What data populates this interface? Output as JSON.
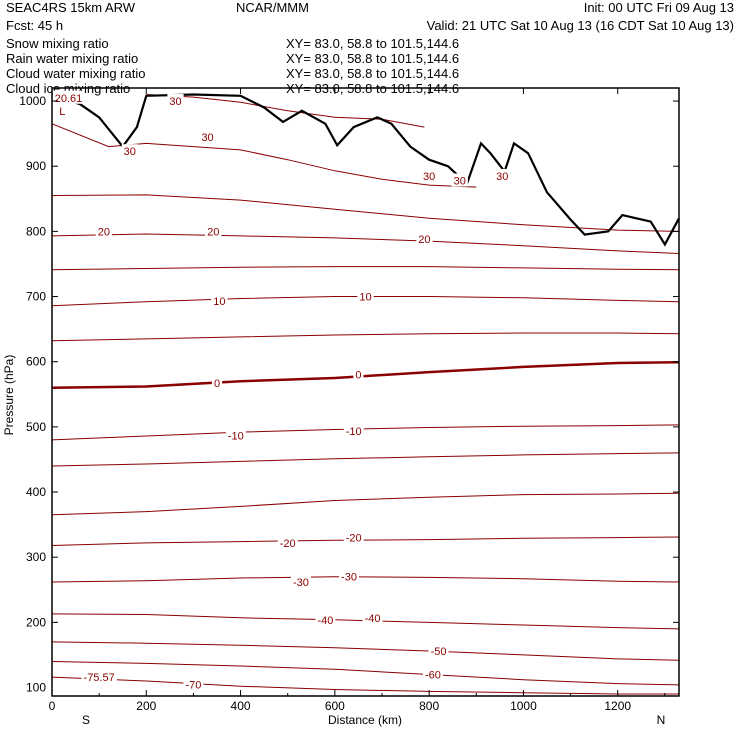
{
  "header": {
    "model": "SEAC4RS 15km ARW",
    "org": "NCAR/MMM",
    "init": "Init: 00 UTC Fri 09 Aug 13",
    "fcst": "Fcst:    45 h",
    "valid": "Valid: 21 UTC Sat 10 Aug 13 (16 CDT Sat 10 Aug 13)"
  },
  "fields": [
    {
      "label": "Snow mixing ratio",
      "xy": "XY=  83.0, 58.8 to 101.5,144.6",
      "color": "#000000"
    },
    {
      "label": "Rain water mixing ratio",
      "xy": "XY=  83.0, 58.8 to 101.5,144.6",
      "color": "#e00000"
    },
    {
      "label": "Cloud water mixing ratio",
      "xy": "XY=  83.0, 58.8 to 101.5,144.6",
      "color": "#0000d0"
    },
    {
      "label": "Cloud ice mixing ratio",
      "xy": "XY=  83.0, 58.8 to 101.5,144.6",
      "color": "#000000"
    }
  ],
  "chart_data": {
    "type": "line",
    "xlabel": "Distance (km)",
    "ylabel": "Pressure (hPa)",
    "xlim": [
      0,
      1330
    ],
    "ylim": [
      1020,
      87
    ],
    "x_ticks": [
      0,
      200,
      400,
      600,
      800,
      1000,
      1200
    ],
    "y_ticks": [
      200,
      300,
      400,
      500,
      600,
      700,
      800,
      900,
      1000
    ],
    "y_ticks_partial": [
      100
    ],
    "direction_labels": {
      "start": "S",
      "end": "N"
    },
    "contour_color": "#8b0000",
    "contours": [
      {
        "level": "-70",
        "points": [
          [
            0,
            116
          ],
          [
            200,
            110
          ],
          [
            400,
            102
          ],
          [
            600,
            97
          ],
          [
            800,
            94
          ],
          [
            1000,
            92
          ],
          [
            1200,
            90
          ],
          [
            1330,
            90
          ]
        ]
      },
      {
        "level": "-60",
        "points": [
          [
            0,
            140
          ],
          [
            200,
            137
          ],
          [
            400,
            133
          ],
          [
            600,
            128
          ],
          [
            800,
            120
          ],
          [
            1000,
            112
          ],
          [
            1200,
            106
          ],
          [
            1330,
            104
          ]
        ]
      },
      {
        "level": "-50",
        "points": [
          [
            0,
            170
          ],
          [
            200,
            168
          ],
          [
            400,
            165
          ],
          [
            600,
            161
          ],
          [
            800,
            156
          ],
          [
            1000,
            150
          ],
          [
            1200,
            144
          ],
          [
            1330,
            142
          ]
        ]
      },
      {
        "level": "-40",
        "points": [
          [
            0,
            213
          ],
          [
            200,
            212
          ],
          [
            400,
            207
          ],
          [
            600,
            204
          ],
          [
            800,
            200
          ],
          [
            1000,
            196
          ],
          [
            1200,
            192
          ],
          [
            1330,
            190
          ]
        ]
      },
      {
        "level": "-30",
        "points": [
          [
            0,
            262
          ],
          [
            200,
            264
          ],
          [
            400,
            268
          ],
          [
            600,
            270
          ],
          [
            800,
            269
          ],
          [
            1000,
            267
          ],
          [
            1200,
            263
          ],
          [
            1330,
            262
          ]
        ]
      },
      {
        "level": "-20",
        "points": [
          [
            0,
            318
          ],
          [
            200,
            322
          ],
          [
            400,
            324
          ],
          [
            600,
            326
          ],
          [
            800,
            327
          ],
          [
            1000,
            329
          ],
          [
            1200,
            330
          ],
          [
            1330,
            331
          ]
        ]
      },
      {
        "level": "-10",
        "points": [
          [
            0,
            365
          ],
          [
            200,
            370
          ],
          [
            400,
            378
          ],
          [
            600,
            387
          ],
          [
            800,
            392
          ],
          [
            1000,
            396
          ],
          [
            1200,
            397
          ],
          [
            1330,
            398
          ]
        ]
      },
      {
        "level": "-10",
        "points": [
          [
            0,
            440
          ],
          [
            200,
            443
          ],
          [
            400,
            447
          ],
          [
            600,
            451
          ],
          [
            800,
            454
          ],
          [
            1000,
            457
          ],
          [
            1200,
            459
          ],
          [
            1330,
            460
          ]
        ]
      },
      {
        "level": "-10",
        "points": [
          [
            0,
            480
          ],
          [
            200,
            486
          ],
          [
            400,
            492
          ],
          [
            600,
            496
          ],
          [
            800,
            499
          ],
          [
            1000,
            501
          ],
          [
            1200,
            502
          ],
          [
            1330,
            503
          ]
        ]
      },
      {
        "level": "0",
        "bold": true,
        "points": [
          [
            0,
            560
          ],
          [
            200,
            562
          ],
          [
            400,
            570
          ],
          [
            600,
            575
          ],
          [
            800,
            584
          ],
          [
            1000,
            592
          ],
          [
            1200,
            598
          ],
          [
            1330,
            599
          ]
        ]
      },
      {
        "level": "10",
        "points": [
          [
            0,
            632
          ],
          [
            200,
            635
          ],
          [
            400,
            638
          ],
          [
            600,
            641
          ],
          [
            800,
            643
          ],
          [
            1000,
            644
          ],
          [
            1200,
            644
          ],
          [
            1330,
            643
          ]
        ]
      },
      {
        "level": "10",
        "points": [
          [
            0,
            686
          ],
          [
            200,
            692
          ],
          [
            400,
            697
          ],
          [
            600,
            700
          ],
          [
            800,
            700
          ],
          [
            1000,
            698
          ],
          [
            1200,
            694
          ],
          [
            1330,
            692
          ]
        ]
      },
      {
        "level": "10",
        "points": [
          [
            0,
            741
          ],
          [
            200,
            743
          ],
          [
            400,
            745
          ],
          [
            600,
            746
          ],
          [
            800,
            746
          ],
          [
            1000,
            744
          ],
          [
            1200,
            742
          ],
          [
            1330,
            741
          ]
        ]
      },
      {
        "level": "20",
        "points": [
          [
            0,
            793
          ],
          [
            200,
            796
          ],
          [
            400,
            793
          ],
          [
            600,
            790
          ],
          [
            800,
            785
          ],
          [
            1000,
            778
          ],
          [
            1200,
            770
          ],
          [
            1330,
            766
          ]
        ]
      },
      {
        "level": "20",
        "points": [
          [
            0,
            855
          ],
          [
            200,
            856
          ],
          [
            400,
            848
          ],
          [
            600,
            834
          ],
          [
            800,
            820
          ],
          [
            1000,
            810
          ],
          [
            1200,
            802
          ],
          [
            1330,
            800
          ]
        ]
      },
      {
        "level": "30",
        "points": [
          [
            0,
            965
          ],
          [
            120,
            930
          ],
          [
            200,
            935
          ],
          [
            300,
            930
          ],
          [
            400,
            925
          ],
          [
            500,
            910
          ],
          [
            600,
            893
          ],
          [
            700,
            880
          ],
          [
            800,
            871
          ],
          [
            900,
            868
          ]
        ]
      },
      {
        "level": "30",
        "points": [
          [
            200,
            1010
          ],
          [
            300,
            1006
          ],
          [
            400,
            998
          ],
          [
            500,
            985
          ],
          [
            600,
            975
          ],
          [
            700,
            972
          ],
          [
            790,
            960
          ]
        ]
      }
    ],
    "terrain": [
      [
        0,
        1010
      ],
      [
        60,
        995
      ],
      [
        100,
        975
      ],
      [
        150,
        930
      ],
      [
        180,
        960
      ],
      [
        200,
        1008
      ],
      [
        300,
        1010
      ],
      [
        400,
        1008
      ],
      [
        450,
        990
      ],
      [
        490,
        968
      ],
      [
        530,
        985
      ],
      [
        580,
        965
      ],
      [
        605,
        932
      ],
      [
        640,
        960
      ],
      [
        690,
        975
      ],
      [
        720,
        965
      ],
      [
        760,
        930
      ],
      [
        800,
        910
      ],
      [
        840,
        900
      ],
      [
        880,
        873
      ],
      [
        910,
        935
      ],
      [
        930,
        920
      ],
      [
        960,
        892
      ],
      [
        980,
        935
      ],
      [
        1010,
        920
      ],
      [
        1050,
        860
      ],
      [
        1100,
        818
      ],
      [
        1130,
        795
      ],
      [
        1180,
        800
      ],
      [
        1210,
        825
      ],
      [
        1270,
        815
      ],
      [
        1300,
        780
      ],
      [
        1330,
        820
      ]
    ],
    "contour_labels": [
      {
        "text": "-75.57",
        "x": 100,
        "p": 116
      },
      {
        "text": "-70",
        "x": 300,
        "p": 105
      },
      {
        "text": "-60",
        "x": 808,
        "p": 120
      },
      {
        "text": "-50",
        "x": 820,
        "p": 156
      },
      {
        "text": "-40",
        "x": 580,
        "p": 204
      },
      {
        "text": "-40",
        "x": 680,
        "p": 207
      },
      {
        "text": "-30",
        "x": 528,
        "p": 262
      },
      {
        "text": "-30",
        "x": 630,
        "p": 270
      },
      {
        "text": "-20",
        "x": 500,
        "p": 322
      },
      {
        "text": "-20",
        "x": 640,
        "p": 330
      },
      {
        "text": "-10",
        "x": 390,
        "p": 487
      },
      {
        "text": "-10",
        "x": 640,
        "p": 494
      },
      {
        "text": "0",
        "x": 350,
        "p": 567
      },
      {
        "text": "0",
        "x": 650,
        "p": 580
      },
      {
        "text": "10",
        "x": 355,
        "p": 693
      },
      {
        "text": "10",
        "x": 665,
        "p": 700
      },
      {
        "text": "20",
        "x": 110,
        "p": 800
      },
      {
        "text": "20",
        "x": 342,
        "p": 800
      },
      {
        "text": "20",
        "x": 790,
        "p": 788
      },
      {
        "text": "30",
        "x": 165,
        "p": 923
      },
      {
        "text": "30",
        "x": 330,
        "p": 945
      },
      {
        "text": "30",
        "x": 262,
        "p": 1000
      },
      {
        "text": "30",
        "x": 800,
        "p": 885
      },
      {
        "text": "30",
        "x": 865,
        "p": 878
      },
      {
        "text": "30",
        "x": 955,
        "p": 885
      },
      {
        "text": "L",
        "x": 22,
        "p": 985
      },
      {
        "text": "20.61",
        "x": 35,
        "p": 1005
      }
    ]
  }
}
